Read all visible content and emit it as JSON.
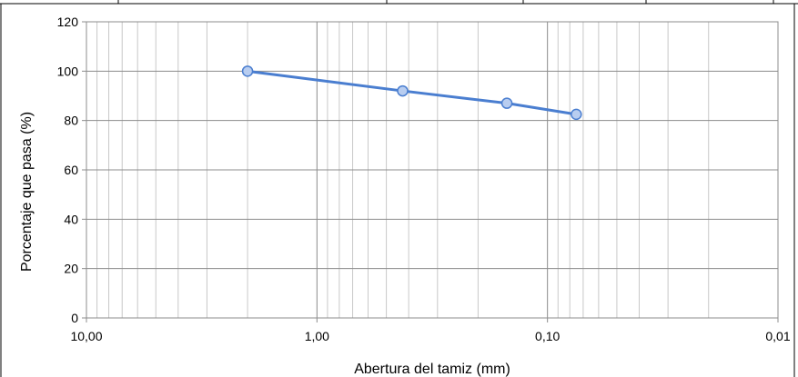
{
  "chart_data": {
    "type": "line",
    "xlabel": "Abertura del tamiz (mm)",
    "ylabel": "Porcentaje que pasa (%)",
    "x_scale": "log",
    "x_reversed": true,
    "xlim": [
      10,
      0.01
    ],
    "ylim": [
      0,
      120
    ],
    "x_ticks": [
      {
        "value": 10,
        "label": "10,00"
      },
      {
        "value": 1,
        "label": "1,00"
      },
      {
        "value": 0.1,
        "label": "0,10"
      },
      {
        "value": 0.01,
        "label": "0,01"
      }
    ],
    "y_ticks": [
      {
        "value": 0,
        "label": "0"
      },
      {
        "value": 20,
        "label": "20"
      },
      {
        "value": 40,
        "label": "40"
      },
      {
        "value": 60,
        "label": "60"
      },
      {
        "value": 80,
        "label": "80"
      },
      {
        "value": 100,
        "label": "100"
      },
      {
        "value": 120,
        "label": "120"
      }
    ],
    "grid": true,
    "legend": "none",
    "series": [
      {
        "x": [
          2.0,
          0.425,
          0.15,
          0.075
        ],
        "y": [
          100,
          92,
          87,
          82.5
        ],
        "color": "#4a7ed0"
      }
    ]
  }
}
